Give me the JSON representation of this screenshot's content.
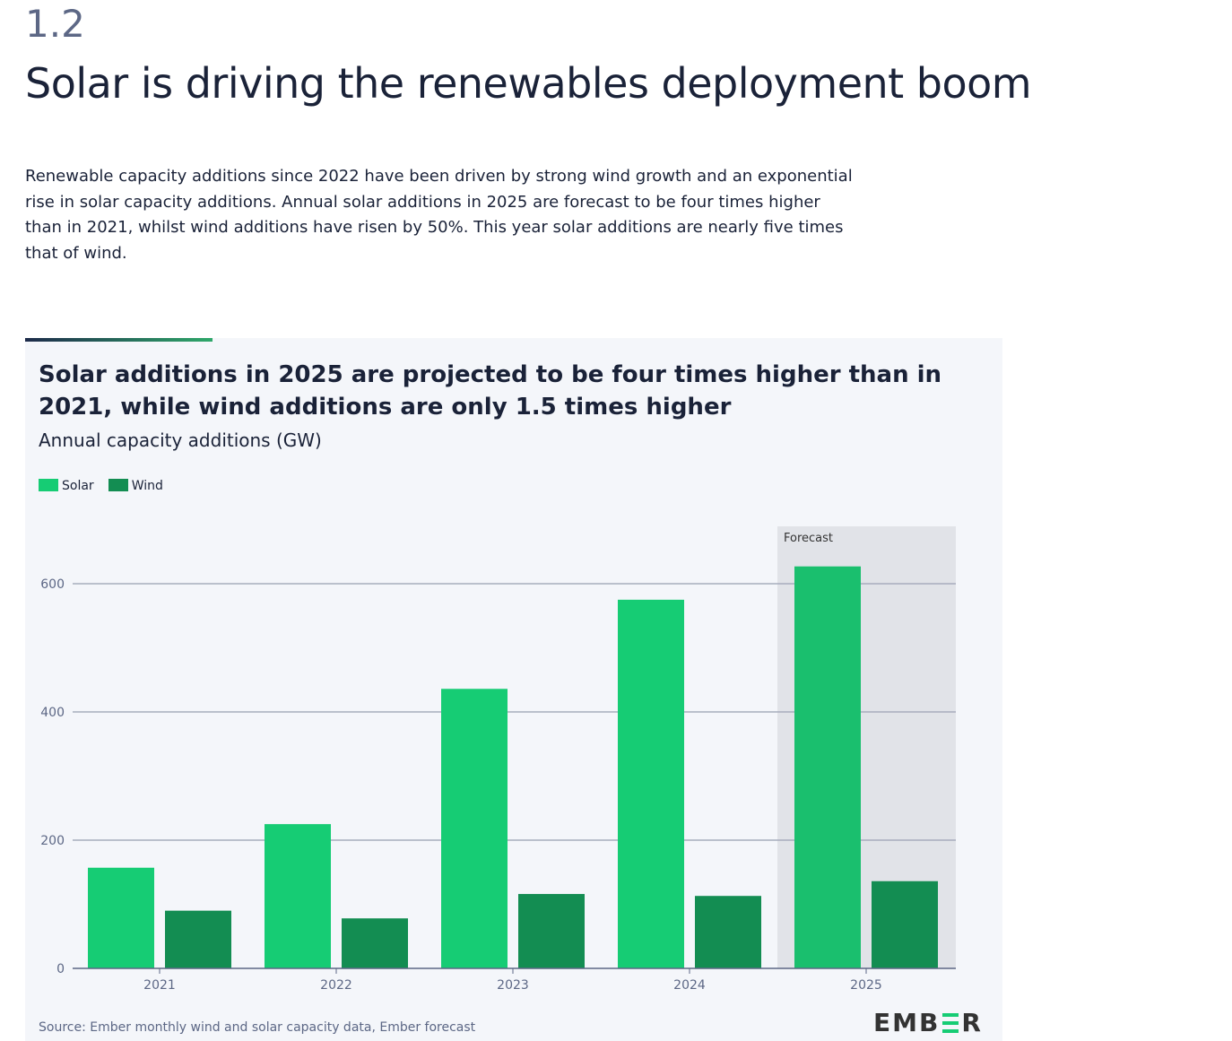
{
  "section_number": "1.2",
  "heading": "Solar is driving the renewables deployment boom",
  "paragraph": "Renewable capacity additions since 2022 have been driven by strong wind growth and an exponential rise in solar capacity additions. Annual solar additions in 2025 are forecast to be four times higher than in 2021, whilst wind additions have risen by 50%. This year solar additions are nearly five times that of wind.",
  "chart_data": {
    "type": "bar",
    "title": "Solar additions in 2025 are projected to be four times higher than in 2021, while wind additions are only 1.5 times higher",
    "subtitle": "Annual capacity additions (GW)",
    "categories": [
      "2021",
      "2022",
      "2023",
      "2024",
      "2025"
    ],
    "series": [
      {
        "name": "Solar",
        "color": "#16cc74",
        "values": [
          157,
          225,
          436,
          575,
          627
        ]
      },
      {
        "name": "Wind",
        "color": "#138d52",
        "values": [
          90,
          78,
          116,
          113,
          136
        ]
      }
    ],
    "forecast_label": "Forecast",
    "forecast_categories": [
      "2025"
    ],
    "yticks": [
      0,
      200,
      400,
      600
    ],
    "ylim": [
      0,
      660
    ],
    "grid": true,
    "legend": "top-left",
    "source": "Source: Ember monthly wind and solar capacity data, Ember forecast",
    "logo": "EMBER"
  }
}
